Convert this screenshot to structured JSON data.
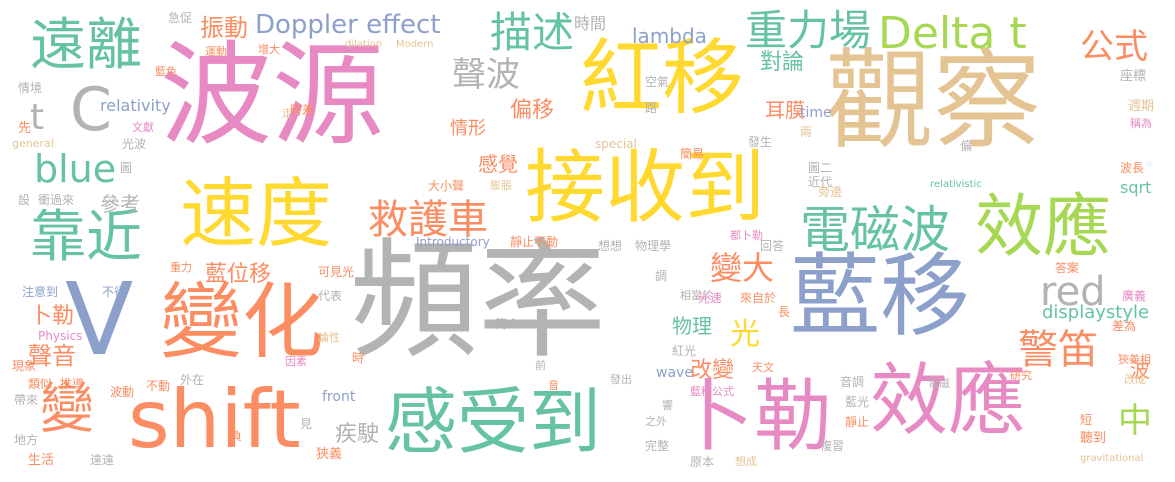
{
  "palette": {
    "gray": "#b3b3b3",
    "pink": "#e78ac3",
    "yellow": "#ffd92f",
    "tan": "#e5c494",
    "blue": "#8da0cb",
    "orange": "#fc8d62",
    "teal": "#66c2a5",
    "green": "#a6d854"
  },
  "words": [
    {
      "text": "頻率",
      "color": "gray"
    },
    {
      "text": "波源",
      "color": "pink"
    },
    {
      "text": "觀察",
      "color": "tan"
    },
    {
      "text": "藍移",
      "color": "blue"
    },
    {
      "text": "紅移",
      "color": "yellow"
    },
    {
      "text": "接收到",
      "color": "yellow"
    },
    {
      "text": "變化",
      "color": "orange"
    },
    {
      "text": "shift",
      "color": "orange"
    },
    {
      "text": "卜勒",
      "color": "pink"
    },
    {
      "text": "效應",
      "color": "pink"
    },
    {
      "text": "感受到",
      "color": "teal"
    },
    {
      "text": "速度",
      "color": "yellow"
    },
    {
      "text": "效應",
      "color": "green"
    },
    {
      "text": "V",
      "color": "blue"
    },
    {
      "text": "遠離",
      "color": "teal"
    },
    {
      "text": "靠近",
      "color": "teal"
    },
    {
      "text": "電磁波",
      "color": "teal"
    },
    {
      "text": "重力場",
      "color": "teal"
    },
    {
      "text": "Delta t",
      "color": "green"
    },
    {
      "text": "C",
      "color": "gray"
    },
    {
      "text": "變",
      "color": "orange"
    },
    {
      "text": "救護車",
      "color": "orange"
    },
    {
      "text": "描述",
      "color": "teal"
    },
    {
      "text": "blue",
      "color": "teal"
    },
    {
      "text": "公式",
      "color": "orange"
    },
    {
      "text": "聲波",
      "color": "gray"
    },
    {
      "text": "警笛",
      "color": "orange"
    },
    {
      "text": "red",
      "color": "gray"
    },
    {
      "text": "變大",
      "color": "orange"
    },
    {
      "text": "Doppler effect",
      "color": "blue"
    },
    {
      "text": "t",
      "color": "gray"
    },
    {
      "text": "中",
      "color": "green"
    },
    {
      "text": "光",
      "color": "yellow"
    },
    {
      "text": "振動",
      "color": "orange"
    },
    {
      "text": "藍位移",
      "color": "orange"
    },
    {
      "text": "聲音",
      "color": "orange"
    },
    {
      "text": "卜勒",
      "color": "orange"
    },
    {
      "text": "lambda",
      "color": "blue"
    },
    {
      "text": "對論",
      "color": "teal"
    },
    {
      "text": "耳膜",
      "color": "orange"
    },
    {
      "text": "情形",
      "color": "orange"
    },
    {
      "text": "偏移",
      "color": "orange"
    },
    {
      "text": "感覺",
      "color": "orange"
    },
    {
      "text": "參考",
      "color": "gray"
    },
    {
      "text": "物理",
      "color": "teal"
    },
    {
      "text": "改變",
      "color": "orange"
    },
    {
      "text": "疾駛",
      "color": "gray"
    },
    {
      "text": "displaystyle",
      "color": "teal"
    },
    {
      "text": "relativity",
      "color": "blue"
    },
    {
      "text": "時間",
      "color": "gray"
    },
    {
      "text": "sqrt",
      "color": "teal"
    },
    {
      "text": "time",
      "color": "blue"
    },
    {
      "text": "波",
      "color": "orange"
    },
    {
      "text": "wave",
      "color": "blue"
    },
    {
      "text": "front",
      "color": "blue"
    },
    {
      "text": "急促",
      "color": "gray"
    },
    {
      "text": "運動",
      "color": "orange"
    },
    {
      "text": "增大",
      "color": "orange"
    },
    {
      "text": "dilation",
      "color": "tan"
    },
    {
      "text": "Modern",
      "color": "tan"
    },
    {
      "text": "空氣",
      "color": "gray"
    },
    {
      "text": "路",
      "color": "gray"
    },
    {
      "text": "時差",
      "color": "orange"
    },
    {
      "text": "藍色",
      "color": "orange"
    },
    {
      "text": "情境",
      "color": "gray"
    },
    {
      "text": "文獻",
      "color": "pink"
    },
    {
      "text": "先",
      "color": "orange"
    },
    {
      "text": "general",
      "color": "tan"
    },
    {
      "text": "光波",
      "color": "gray"
    },
    {
      "text": "走",
      "color": "tan"
    },
    {
      "text": "special",
      "color": "tan"
    },
    {
      "text": "簡易",
      "color": "orange"
    },
    {
      "text": "發生",
      "color": "gray"
    },
    {
      "text": "兩",
      "color": "tan"
    },
    {
      "text": "座標",
      "color": "gray"
    },
    {
      "text": "週期",
      "color": "tan"
    },
    {
      "text": "稱為",
      "color": "pink"
    },
    {
      "text": "偏",
      "color": "gray"
    },
    {
      "text": "波長",
      "color": "orange"
    },
    {
      "text": "圖二",
      "color": "gray"
    },
    {
      "text": "近代",
      "color": "gray"
    },
    {
      "text": "旁邊",
      "color": "tan"
    },
    {
      "text": "relativistic",
      "color": "teal"
    },
    {
      "text": "大小聲",
      "color": "orange"
    },
    {
      "text": "膨脹",
      "color": "tan"
    },
    {
      "text": "衝過來",
      "color": "gray"
    },
    {
      "text": "設",
      "color": "gray"
    },
    {
      "text": "圖",
      "color": "gray"
    },
    {
      "text": "Introductory",
      "color": "blue"
    },
    {
      "text": "靜止不動",
      "color": "orange"
    },
    {
      "text": "想想",
      "color": "gray"
    },
    {
      "text": "物理學",
      "color": "gray"
    },
    {
      "text": "都卜勒",
      "color": "pink"
    },
    {
      "text": "回答",
      "color": "gray"
    },
    {
      "text": "重力",
      "color": "orange"
    },
    {
      "text": "可見光",
      "color": "orange"
    },
    {
      "text": "調",
      "color": "gray"
    },
    {
      "text": "相當於",
      "color": "gray"
    },
    {
      "text": "光速",
      "color": "pink"
    },
    {
      "text": "來自於",
      "color": "orange"
    },
    {
      "text": "長",
      "color": "orange"
    },
    {
      "text": "答案",
      "color": "orange"
    },
    {
      "text": "注意到",
      "color": "blue"
    },
    {
      "text": "不行",
      "color": "blue"
    },
    {
      "text": "代表",
      "color": "gray"
    },
    {
      "text": "Physics",
      "color": "pink"
    },
    {
      "text": "簡介",
      "color": "gray"
    },
    {
      "text": "廣義",
      "color": "pink"
    },
    {
      "text": "論性",
      "color": "tan"
    },
    {
      "text": "因素",
      "color": "pink"
    },
    {
      "text": "差為",
      "color": "orange"
    },
    {
      "text": "狹義相",
      "color": "orange"
    },
    {
      "text": "現象",
      "color": "orange"
    },
    {
      "text": "紅光",
      "color": "gray"
    },
    {
      "text": "前",
      "color": "gray"
    },
    {
      "text": "天文",
      "color": "orange"
    },
    {
      "text": "類似",
      "color": "orange"
    },
    {
      "text": "推導",
      "color": "orange"
    },
    {
      "text": "時",
      "color": "orange"
    },
    {
      "text": "帶來",
      "color": "gray"
    },
    {
      "text": "波動",
      "color": "orange"
    },
    {
      "text": "不動",
      "color": "orange"
    },
    {
      "text": "外在",
      "color": "gray"
    },
    {
      "text": "音",
      "color": "orange"
    },
    {
      "text": "發出",
      "color": "gray"
    },
    {
      "text": "藍移公式",
      "color": "pink"
    },
    {
      "text": "音調",
      "color": "gray"
    },
    {
      "text": "電磁",
      "color": "gray"
    },
    {
      "text": "研究",
      "color": "orange"
    },
    {
      "text": "改成",
      "color": "tan"
    },
    {
      "text": "藍光",
      "color": "gray"
    },
    {
      "text": "響",
      "color": "gray"
    },
    {
      "text": "靜止",
      "color": "orange"
    },
    {
      "text": "短",
      "color": "orange"
    },
    {
      "text": "地方",
      "color": "gray"
    },
    {
      "text": "負",
      "color": "orange"
    },
    {
      "text": "之外",
      "color": "gray"
    },
    {
      "text": "見",
      "color": "gray"
    },
    {
      "text": "生活",
      "color": "orange"
    },
    {
      "text": "遠遠",
      "color": "gray"
    },
    {
      "text": "狹義",
      "color": "orange"
    },
    {
      "text": "完整",
      "color": "gray"
    },
    {
      "text": "原本",
      "color": "gray"
    },
    {
      "text": "想成",
      "color": "tan"
    },
    {
      "text": "複習",
      "color": "gray"
    },
    {
      "text": "聽到",
      "color": "orange"
    },
    {
      "text": "gravitational",
      "color": "tan"
    }
  ]
}
